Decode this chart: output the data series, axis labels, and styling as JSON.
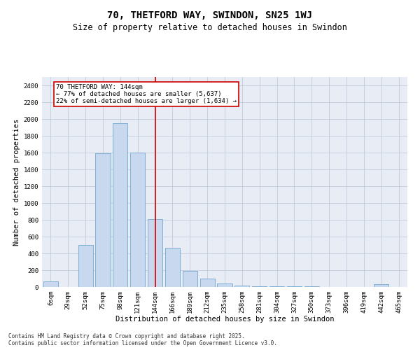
{
  "title": "70, THETFORD WAY, SWINDON, SN25 1WJ",
  "subtitle": "Size of property relative to detached houses in Swindon",
  "xlabel": "Distribution of detached houses by size in Swindon",
  "ylabel": "Number of detached properties",
  "categories": [
    "6sqm",
    "29sqm",
    "52sqm",
    "75sqm",
    "98sqm",
    "121sqm",
    "144sqm",
    "166sqm",
    "189sqm",
    "212sqm",
    "235sqm",
    "258sqm",
    "281sqm",
    "304sqm",
    "327sqm",
    "350sqm",
    "373sqm",
    "396sqm",
    "419sqm",
    "442sqm",
    "465sqm"
  ],
  "values": [
    70,
    0,
    500,
    1590,
    1950,
    1600,
    810,
    470,
    195,
    100,
    40,
    20,
    10,
    5,
    5,
    5,
    0,
    0,
    0,
    30,
    0
  ],
  "bar_color": "#c8d9ef",
  "bar_edge_color": "#6fa8d0",
  "vline_x_index": 6,
  "vline_color": "#cc0000",
  "annotation_text": "70 THETFORD WAY: 144sqm\n← 77% of detached houses are smaller (5,637)\n22% of semi-detached houses are larger (1,634) →",
  "annotation_box_color": "#cc0000",
  "ylim": [
    0,
    2500
  ],
  "yticks": [
    0,
    200,
    400,
    600,
    800,
    1000,
    1200,
    1400,
    1600,
    1800,
    2000,
    2200,
    2400
  ],
  "grid_color": "#b8c4d8",
  "bg_color": "#e8ecf5",
  "footer_line1": "Contains HM Land Registry data © Crown copyright and database right 2025.",
  "footer_line2": "Contains public sector information licensed under the Open Government Licence v3.0.",
  "title_fontsize": 10,
  "subtitle_fontsize": 8.5,
  "axis_label_fontsize": 7.5,
  "tick_fontsize": 6.5,
  "annotation_fontsize": 6.5,
  "footer_fontsize": 5.5
}
